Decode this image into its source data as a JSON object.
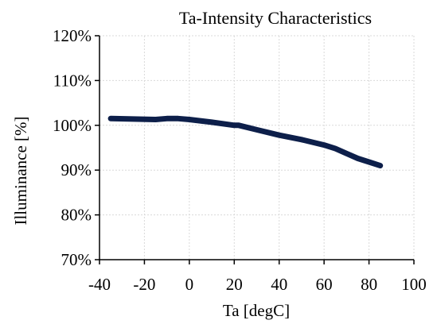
{
  "chart_data": {
    "type": "line",
    "title": "Ta-Intensity Characteristics",
    "xlabel": "Ta [degC]",
    "ylabel": "Illuminance [%]",
    "xlim": [
      -40,
      100
    ],
    "ylim": [
      70,
      120
    ],
    "x_ticks": [
      -40,
      -20,
      0,
      20,
      40,
      60,
      80,
      100
    ],
    "y_ticks": [
      70,
      80,
      90,
      100,
      110,
      120
    ],
    "y_tick_labels": [
      "70%",
      "80%",
      "90%",
      "100%",
      "110%",
      "120%"
    ],
    "x_tick_labels": [
      "-40",
      "-20",
      "0",
      "20",
      "40",
      "60",
      "80",
      "100"
    ],
    "grid": true,
    "legend": "none",
    "series": [
      {
        "color": "#0d1f4a",
        "x": [
          -35,
          -25,
          -15,
          -10,
          -5,
          0,
          10,
          20,
          22,
          30,
          40,
          50,
          60,
          65,
          70,
          75,
          80,
          85
        ],
        "y": [
          101.5,
          101.4,
          101.3,
          101.5,
          101.5,
          101.3,
          100.7,
          100.0,
          100.0,
          99.0,
          97.8,
          96.8,
          95.6,
          94.8,
          93.7,
          92.6,
          91.8,
          91.0
        ]
      }
    ]
  }
}
